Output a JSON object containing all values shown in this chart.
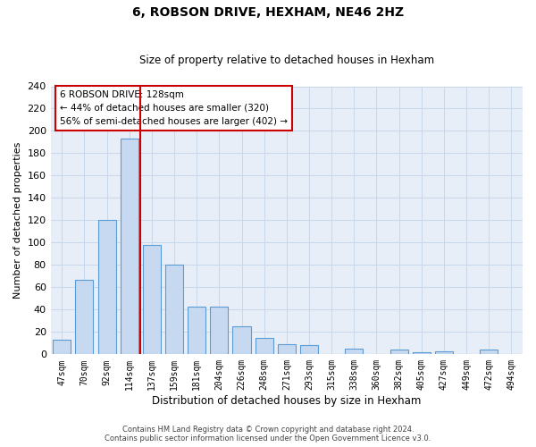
{
  "title": "6, ROBSON DRIVE, HEXHAM, NE46 2HZ",
  "subtitle": "Size of property relative to detached houses in Hexham",
  "xlabel": "Distribution of detached houses by size in Hexham",
  "ylabel": "Number of detached properties",
  "bins": [
    "47sqm",
    "70sqm",
    "92sqm",
    "114sqm",
    "137sqm",
    "159sqm",
    "181sqm",
    "204sqm",
    "226sqm",
    "248sqm",
    "271sqm",
    "293sqm",
    "315sqm",
    "338sqm",
    "360sqm",
    "382sqm",
    "405sqm",
    "427sqm",
    "449sqm",
    "472sqm",
    "494sqm"
  ],
  "values": [
    13,
    67,
    120,
    193,
    98,
    80,
    43,
    43,
    25,
    15,
    9,
    8,
    0,
    5,
    0,
    4,
    2,
    3,
    0,
    4,
    0
  ],
  "bar_color": "#c6d9f0",
  "bar_edge_color": "#5b9bd5",
  "vline_pos": 3.5,
  "vline_color": "#cc0000",
  "ylim": [
    0,
    240
  ],
  "yticks": [
    0,
    20,
    40,
    60,
    80,
    100,
    120,
    140,
    160,
    180,
    200,
    220,
    240
  ],
  "annotation_title": "6 ROBSON DRIVE: 128sqm",
  "annotation_line1": "← 44% of detached houses are smaller (320)",
  "annotation_line2": "56% of semi-detached houses are larger (402) →",
  "annotation_box_color": "#ffffff",
  "annotation_box_edge": "#cc0000",
  "footer_line1": "Contains HM Land Registry data © Crown copyright and database right 2024.",
  "footer_line2": "Contains public sector information licensed under the Open Government Licence v3.0.",
  "grid_color": "#c8d8ea",
  "background_color": "#e8eef8"
}
